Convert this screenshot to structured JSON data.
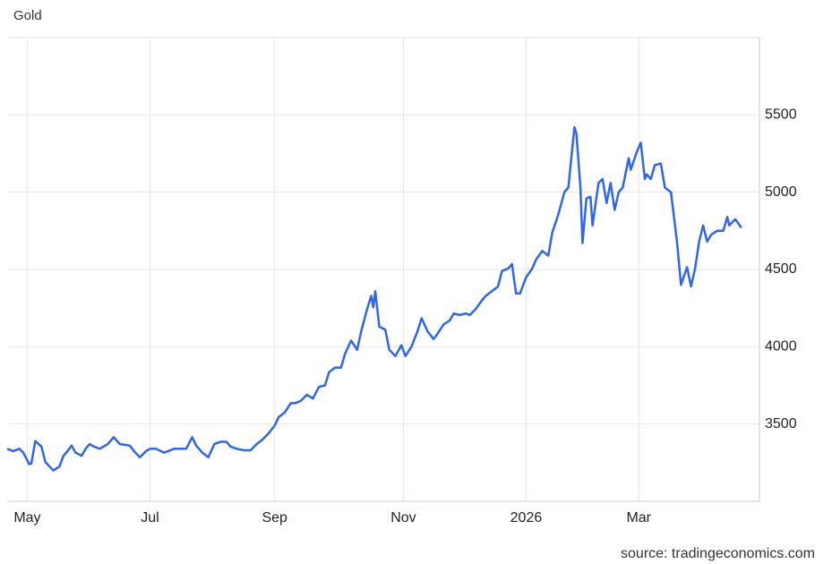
{
  "chart_data": {
    "type": "line",
    "title": "Gold",
    "source": "source: tradingeconomics.com",
    "color": "#2f66f0",
    "grid": true,
    "x": [
      -10,
      -7,
      -4,
      -2,
      1,
      2,
      4,
      7,
      9,
      11,
      13,
      16,
      18,
      20,
      22,
      24,
      27,
      29,
      31,
      33,
      36,
      38,
      40,
      43,
      46,
      49,
      51,
      53,
      56,
      59,
      61,
      64,
      68,
      70,
      73,
      76,
      79,
      82,
      84,
      87,
      90,
      93,
      96,
      99,
      101,
      104,
      108,
      111,
      114,
      117,
      120,
      123,
      125,
      128,
      131,
      133,
      136,
      139,
      142,
      145,
      148,
      150,
      153,
      156,
      158,
      161,
      164,
      166,
      169,
      171,
      172,
      173,
      175,
      178,
      180,
      183,
      186,
      188,
      191,
      194,
      196,
      199,
      202,
      204,
      207,
      210,
      212,
      215,
      218,
      220,
      223,
      226,
      228,
      231,
      234,
      236,
      239,
      241,
      243,
      245,
      248,
      251,
      253,
      256,
      259,
      261,
      264,
      267,
      269,
      272,
      273,
      275,
      276,
      278,
      280,
      281,
      284,
      286,
      288,
      290,
      292,
      294,
      296,
      299,
      300,
      303,
      305,
      307,
      308,
      310,
      312,
      315,
      317,
      320,
      323,
      325,
      328,
      330,
      332,
      334,
      336,
      338,
      340,
      343,
      346,
      348,
      349,
      352,
      355
    ],
    "values": [
      3340,
      3325,
      3340,
      3315,
      3240,
      3245,
      3390,
      3355,
      3255,
      3225,
      3200,
      3225,
      3295,
      3325,
      3360,
      3315,
      3295,
      3340,
      3370,
      3355,
      3340,
      3355,
      3370,
      3415,
      3370,
      3365,
      3360,
      3325,
      3285,
      3325,
      3340,
      3340,
      3315,
      3325,
      3340,
      3340,
      3340,
      3415,
      3360,
      3315,
      3285,
      3370,
      3385,
      3385,
      3355,
      3340,
      3330,
      3330,
      3370,
      3400,
      3440,
      3490,
      3545,
      3575,
      3635,
      3635,
      3650,
      3690,
      3665,
      3740,
      3750,
      3835,
      3865,
      3865,
      3955,
      4040,
      3980,
      4100,
      4245,
      4330,
      4255,
      4360,
      4130,
      4110,
      3980,
      3940,
      4010,
      3940,
      4000,
      4100,
      4185,
      4100,
      4050,
      4085,
      4145,
      4170,
      4215,
      4205,
      4215,
      4205,
      4245,
      4300,
      4330,
      4360,
      4390,
      4490,
      4505,
      4535,
      4345,
      4345,
      4450,
      4505,
      4565,
      4620,
      4590,
      4740,
      4855,
      5000,
      5030,
      5420,
      5380,
      5030,
      4670,
      4960,
      4970,
      4785,
      5060,
      5085,
      4930,
      5060,
      4885,
      5000,
      5030,
      5220,
      5145,
      5260,
      5320,
      5085,
      5115,
      5085,
      5175,
      5185,
      5030,
      5000,
      4680,
      4400,
      4515,
      4390,
      4505,
      4680,
      4785,
      4680,
      4725,
      4750,
      4750,
      4840,
      4785,
      4825,
      4770
    ],
    "xlim": [
      -10,
      364
    ],
    "xticks": [
      {
        "value": 0,
        "label": "May"
      },
      {
        "value": 61,
        "label": "Jul"
      },
      {
        "value": 123,
        "label": "Sep"
      },
      {
        "value": 187,
        "label": "Nov"
      },
      {
        "value": 248,
        "label": "2026"
      },
      {
        "value": 304,
        "label": "Mar"
      }
    ],
    "ylim": [
      3000,
      6000
    ],
    "yticks": [
      3500,
      4000,
      4500,
      5000,
      5500
    ]
  }
}
